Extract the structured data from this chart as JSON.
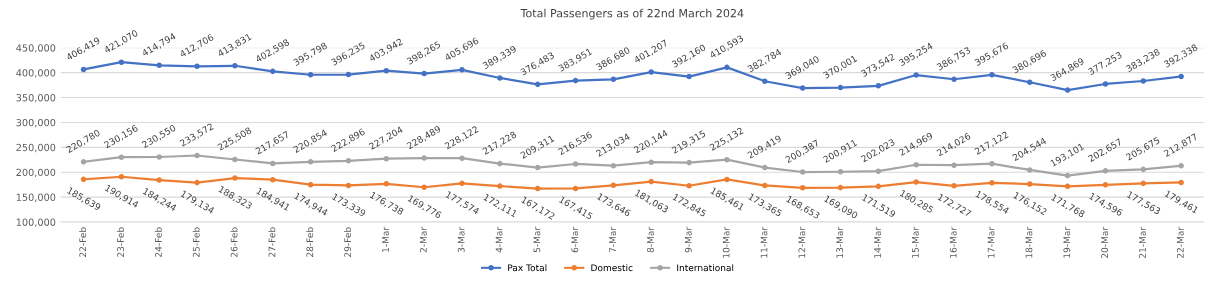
{
  "chart_data": {
    "type": "line",
    "title": "Total Passengers as of 22nd March 2024",
    "categories": [
      "22-Feb",
      "23-Feb",
      "24-Feb",
      "25-Feb",
      "26-Feb",
      "27-Feb",
      "28-Feb",
      "29-Feb",
      "1-Mar",
      "2-Mar",
      "3-Mar",
      "4-Mar",
      "5-Mar",
      "6-Mar",
      "7-Mar",
      "8-Mar",
      "9-Mar",
      "10-Mar",
      "11-Mar",
      "12-Mar",
      "13-Mar",
      "14-Mar",
      "15-Mar",
      "16-Mar",
      "17-Mar",
      "18-Mar",
      "19-Mar",
      "20-Mar",
      "21-Mar",
      "22-Mar"
    ],
    "series": [
      {
        "name": "Pax Total",
        "color": "#4472c4",
        "values": [
          406419,
          421070,
          414794,
          412706,
          413831,
          402598,
          395798,
          396235,
          403942,
          398265,
          405696,
          389339,
          376483,
          383951,
          386680,
          401207,
          392160,
          410593,
          382784,
          369040,
          370001,
          373542,
          395254,
          386753,
          395676,
          380696,
          364869,
          377253,
          383238,
          392338
        ],
        "value_labels": [
          "406,419",
          "421,070",
          "414,794",
          "412,706",
          "413,831",
          "402,598",
          "395,798",
          "396,235",
          "403,942",
          "398,265",
          "405,696",
          "389,339",
          "376,483",
          "383,951",
          "386,680",
          "401,207",
          "392,160",
          "410,593",
          "382,784",
          "369,040",
          "370,001",
          "373,542",
          "395,254",
          "386,753",
          "395,676",
          "380,696",
          "364,869",
          "377,253",
          "383,238",
          "392,338"
        ]
      },
      {
        "name": "Domestic",
        "color": "#ed7d31",
        "values": [
          185639,
          190914,
          184244,
          179134,
          188323,
          184941,
          174944,
          173339,
          176738,
          169776,
          177574,
          172111,
          167172,
          167415,
          173646,
          181063,
          172845,
          185461,
          173365,
          168653,
          169090,
          171519,
          180285,
          172727,
          178554,
          176152,
          171768,
          174596,
          177563,
          179461
        ],
        "value_labels": [
          "185,639",
          "190,914",
          "184,244",
          "179,134",
          "188,323",
          "184,941",
          "174,944",
          "173,339",
          "176,738",
          "169,776",
          "177,574",
          "172,111",
          "167,172",
          "167,415",
          "173,646",
          "181,063",
          "172,845",
          "185,461",
          "173,365",
          "168,653",
          "169,090",
          "171,519",
          "180,285",
          "172,727",
          "178,554",
          "176,152",
          "171,768",
          "174,596",
          "177,563",
          "179,461"
        ]
      },
      {
        "name": "International",
        "color": "#a5a5a5",
        "values": [
          220780,
          230156,
          230550,
          233572,
          225508,
          217657,
          220854,
          222896,
          227204,
          228489,
          228122,
          217228,
          209311,
          216536,
          213034,
          220144,
          219315,
          225132,
          209419,
          200387,
          200911,
          202023,
          214969,
          214026,
          217122,
          204544,
          193101,
          202657,
          205675,
          212877
        ],
        "value_labels": [
          "220,780",
          "230,156",
          "230,550",
          "233,572",
          "225,508",
          "217,657",
          "220,854",
          "222,896",
          "227,204",
          "228,489",
          "228,122",
          "217,228",
          "209,311",
          "216,536",
          "213,034",
          "220,144",
          "219,315",
          "225,132",
          "209,419",
          "200,387",
          "200,911",
          "202,023",
          "214,969",
          "214,026",
          "217,122",
          "204,544",
          "193,101",
          "202,657",
          "205,675",
          "212,877"
        ]
      }
    ],
    "ylim": [
      100000,
      450000
    ],
    "yticks": [
      {
        "value": 100000,
        "label": "100,000"
      },
      {
        "value": 150000,
        "label": "150,000"
      },
      {
        "value": 200000,
        "label": "200,000"
      },
      {
        "value": 250000,
        "label": "250,000"
      },
      {
        "value": 300000,
        "label": "300,000"
      },
      {
        "value": 350000,
        "label": "350,000"
      },
      {
        "value": 400000,
        "label": "400,000"
      },
      {
        "value": 450000,
        "label": "450,000"
      }
    ],
    "grid": "y",
    "legend": "bottom",
    "marker": "circle",
    "line_style": "solid"
  }
}
